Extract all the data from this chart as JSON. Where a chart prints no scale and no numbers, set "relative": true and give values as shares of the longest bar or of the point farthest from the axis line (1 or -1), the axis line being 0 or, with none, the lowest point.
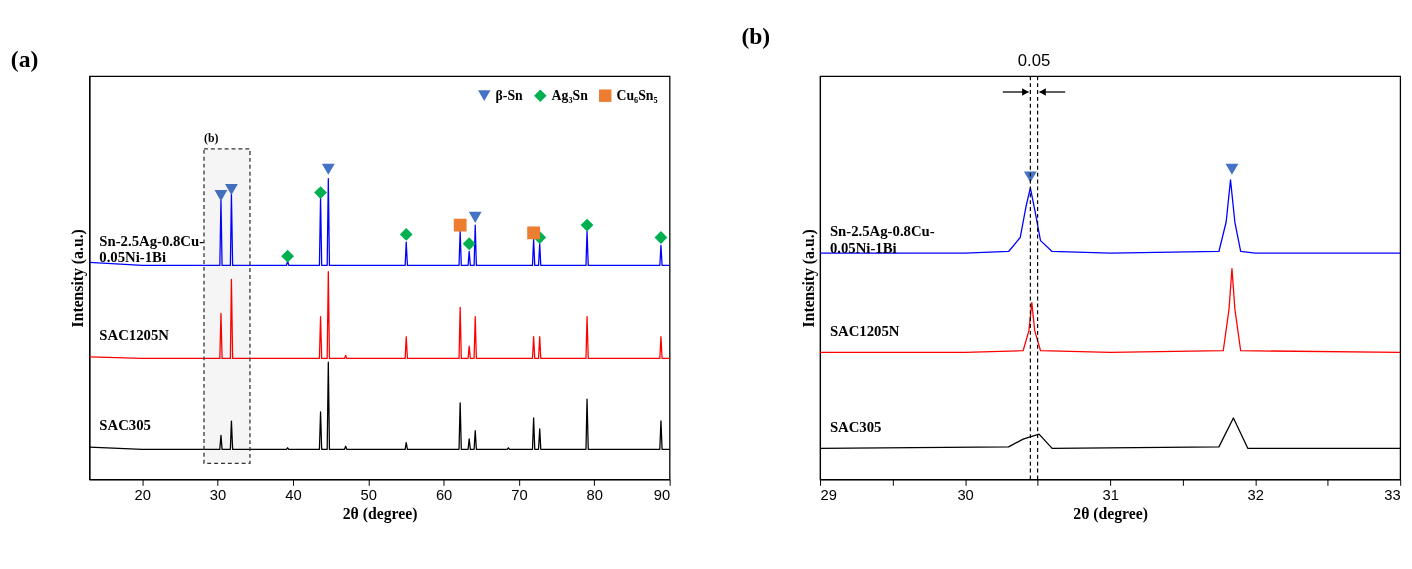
{
  "chart_data": [
    {
      "type": "line",
      "title": "(a)",
      "xlabel": "2θ (degree)",
      "ylabel": "Intensity (a.u.)",
      "relative": true,
      "xlim": [
        13,
        90
      ],
      "xticks": [
        20,
        30,
        40,
        50,
        60,
        70,
        80,
        90
      ],
      "legend": "top right",
      "grid": false,
      "series": [
        {
          "name": "Sn-2.5Ag-0.8Cu-0.05Ni-1Bi",
          "color": "#0000ff",
          "x": [
            13,
            20,
            30.3,
            30.45,
            30.6,
            31.7,
            31.84,
            32,
            39.15,
            39.3,
            39.45,
            43.52,
            43.67,
            43.82,
            44.55,
            44.7,
            44.85,
            54.9,
            55.04,
            55.2,
            62.05,
            62.2,
            62.35,
            63.25,
            63.4,
            63.55,
            64.05,
            64.2,
            64.35,
            71.8,
            71.95,
            72.1,
            72.6,
            72.76,
            72.9,
            78.9,
            79.04,
            79.2,
            88.7,
            88.85,
            89,
            90
          ],
          "values": [
            0.7,
            0.69,
            0.69,
            0.9,
            0.69,
            0.69,
            0.92,
            0.69,
            0.69,
            0.705,
            0.69,
            0.69,
            0.91,
            0.69,
            0.69,
            0.97,
            0.69,
            0.69,
            0.765,
            0.69,
            0.69,
            0.8,
            0.69,
            0.69,
            0.735,
            0.69,
            0.69,
            0.82,
            0.69,
            0.69,
            0.775,
            0.69,
            0.69,
            0.76,
            0.69,
            0.69,
            0.8,
            0.69,
            0.69,
            0.755,
            0.69,
            0.69
          ]
        },
        {
          "name": "SAC1205N",
          "color": "#ff0000",
          "x": [
            13,
            20,
            30.3,
            30.45,
            30.6,
            31.7,
            31.84,
            32,
            43.52,
            43.67,
            43.82,
            44.55,
            44.7,
            44.85,
            46.85,
            47,
            47.15,
            54.9,
            55.04,
            55.2,
            62.05,
            62.2,
            62.35,
            63.25,
            63.4,
            63.55,
            64.05,
            64.2,
            64.35,
            71.8,
            71.95,
            72.1,
            72.6,
            72.76,
            72.9,
            78.9,
            79.04,
            79.2,
            88.7,
            88.85,
            89,
            90
          ],
          "values": [
            0.395,
            0.39,
            0.39,
            0.535,
            0.39,
            0.39,
            0.645,
            0.39,
            0.39,
            0.525,
            0.39,
            0.39,
            0.67,
            0.39,
            0.39,
            0.4,
            0.39,
            0.39,
            0.46,
            0.39,
            0.39,
            0.555,
            0.39,
            0.39,
            0.43,
            0.39,
            0.39,
            0.525,
            0.39,
            0.39,
            0.46,
            0.39,
            0.39,
            0.46,
            0.39,
            0.39,
            0.525,
            0.39,
            0.39,
            0.46,
            0.39,
            0.39
          ]
        },
        {
          "name": "SAC305",
          "color": "#000000",
          "x": [
            13,
            20,
            30.3,
            30.45,
            30.6,
            31.7,
            31.84,
            32,
            39.15,
            39.3,
            39.45,
            43.52,
            43.67,
            43.82,
            44.55,
            44.7,
            44.85,
            46.85,
            47,
            47.15,
            54.9,
            55.04,
            55.2,
            62.05,
            62.2,
            62.35,
            63.25,
            63.4,
            63.55,
            64.05,
            64.2,
            64.35,
            68.45,
            68.6,
            68.75,
            71.8,
            71.95,
            72.1,
            72.6,
            72.76,
            72.9,
            78.9,
            79.04,
            79.2,
            88.7,
            88.85,
            89,
            90
          ],
          "values": [
            0.104,
            0.097,
            0.097,
            0.142,
            0.097,
            0.097,
            0.188,
            0.097,
            0.097,
            0.102,
            0.097,
            0.097,
            0.218,
            0.097,
            0.097,
            0.378,
            0.097,
            0.097,
            0.107,
            0.097,
            0.097,
            0.119,
            0.097,
            0.097,
            0.247,
            0.097,
            0.097,
            0.131,
            0.097,
            0.097,
            0.157,
            0.097,
            0.097,
            0.102,
            0.097,
            0.097,
            0.198,
            0.097,
            0.097,
            0.163,
            0.097,
            0.097,
            0.259,
            0.097,
            0.097,
            0.189,
            0.097,
            0.097
          ]
        },
        {
          "type": "scatter",
          "name": "β-Sn",
          "marker": "triangle",
          "color": "#4472c4",
          "x": [
            30.45,
            31.84,
            44.7,
            64.2
          ],
          "values": [
            0.915,
            0.935,
            1.0,
            0.845
          ]
        },
        {
          "type": "scatter",
          "name": "Ag₃Sn",
          "marker": "diamond",
          "color": "#00b050",
          "x": [
            39.3,
            43.67,
            55.04,
            63.4,
            72.76,
            79.04,
            88.85
          ],
          "values": [
            0.72,
            0.925,
            0.79,
            0.76,
            0.78,
            0.82,
            0.78
          ]
        },
        {
          "type": "scatter",
          "name": "Cu₆Sn₅",
          "marker": "square",
          "color": "#ed7d31",
          "x": [
            62.2,
            71.95
          ],
          "values": [
            0.82,
            0.795
          ]
        }
      ],
      "bands": [
        {
          "axis": "x",
          "from": 28.2,
          "to": 34.3,
          "label": "(b)",
          "color": "#333333"
        }
      ]
    },
    {
      "type": "line",
      "title": "(b)",
      "xlabel": "2θ (degree)",
      "ylabel": "Intensity (a.u.)",
      "relative": true,
      "xlim": [
        29,
        33
      ],
      "xticks": [
        29,
        {
          "value": 29.5,
          "label": null
        },
        30,
        {
          "value": 30.5,
          "label": null
        },
        31,
        {
          "value": 31.5,
          "label": null
        },
        32,
        {
          "value": 32.5,
          "label": null
        },
        33
      ],
      "grid": false,
      "series": [
        {
          "name": "Sn-2.5Ag-0.8Cu-0.05Ni-1Bi",
          "color": "#0000ff",
          "x": [
            29,
            30,
            30.3,
            30.38,
            30.42,
            30.45,
            30.48,
            30.52,
            30.6,
            31,
            31.75,
            31.8,
            31.83,
            31.86,
            31.9,
            32,
            33
          ],
          "values": [
            0.73,
            0.73,
            0.735,
            0.78,
            0.88,
            0.94,
            0.87,
            0.77,
            0.735,
            0.73,
            0.735,
            0.83,
            0.966,
            0.83,
            0.735,
            0.73,
            0.73
          ]
        },
        {
          "name": "SAC1205N",
          "color": "#ff0000",
          "x": [
            29,
            30,
            30.4,
            30.44,
            30.46,
            30.48,
            30.52,
            31,
            31.78,
            31.82,
            31.84,
            31.86,
            31.9,
            33
          ],
          "values": [
            0.41,
            0.41,
            0.415,
            0.48,
            0.57,
            0.48,
            0.415,
            0.41,
            0.415,
            0.55,
            0.68,
            0.55,
            0.415,
            0.41
          ]
        },
        {
          "name": "SAC305",
          "color": "#000000",
          "x": [
            29,
            30.3,
            30.4,
            30.51,
            30.6,
            31.75,
            31.85,
            31.95,
            33
          ],
          "values": [
            0.1,
            0.105,
            0.13,
            0.146,
            0.1,
            0.105,
            0.198,
            0.1,
            0.1
          ]
        },
        {
          "type": "scatter",
          "marker": "triangle",
          "color": "#4472c4",
          "x": [
            30.45,
            31.84
          ],
          "values": [
            0.975,
            1.0
          ]
        }
      ],
      "ref_lines": [
        {
          "axis": "x",
          "value": 30.45,
          "line_style": "dashed",
          "color": "#000000"
        },
        {
          "axis": "x",
          "value": 30.5,
          "line_style": "dashed",
          "color": "#000000"
        }
      ],
      "annotations": [
        "0.05"
      ]
    }
  ]
}
